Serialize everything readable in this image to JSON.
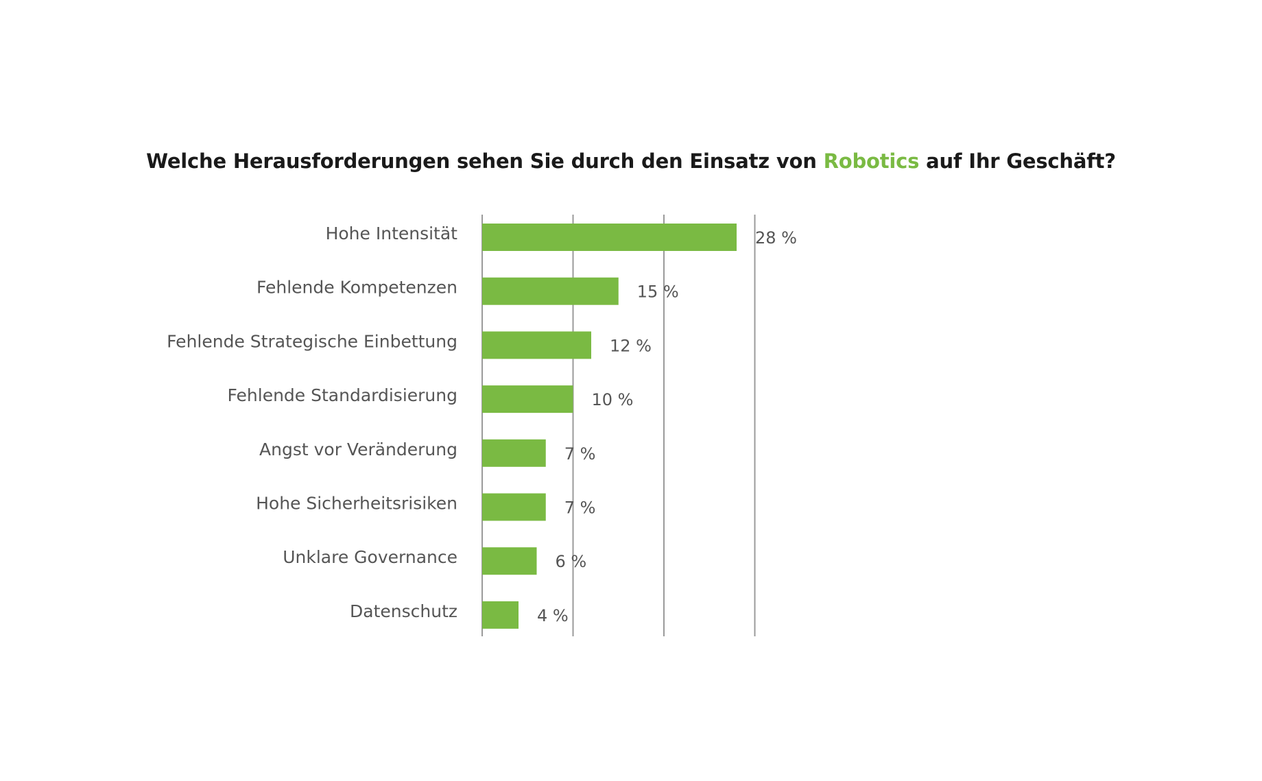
{
  "chart_data": {
    "type": "bar",
    "orientation": "horizontal",
    "title": {
      "prefix": "Welche Herausforderungen sehen Sie durch den Einsatz von ",
      "highlight": "Robotics",
      "suffix": " auf Ihr Geschäft?"
    },
    "categories": [
      "Hohe Intensität",
      "Fehlende Kompetenzen",
      "Fehlende Strategische Einbettung",
      "Fehlende Standardisierung",
      "Angst vor Veränderung",
      "Hohe Sicherheitsrisiken",
      "Unklare Governance",
      "Datenschutz"
    ],
    "values": [
      28,
      15,
      12,
      10,
      7,
      7,
      6,
      4
    ],
    "value_labels": [
      "28 %",
      "15 %",
      "12 %",
      "10 %",
      "7 %",
      "7 %",
      "6 %",
      "4 %"
    ],
    "xlim": [
      0,
      30
    ],
    "gridlines_at": [
      0,
      10,
      20,
      30
    ],
    "grid": true,
    "legend": "none",
    "colors": {
      "bar": "#7aba43",
      "accent": "#7aba43",
      "title": "#1a1a1a",
      "text": "#555555",
      "grid": "#9a9a9a"
    }
  }
}
